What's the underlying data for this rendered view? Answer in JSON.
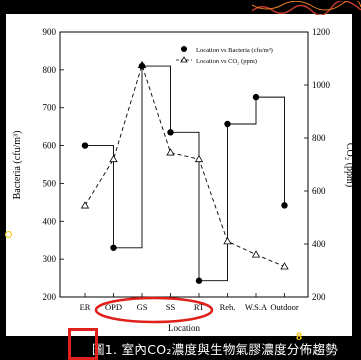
{
  "chart_data": {
    "type": "line",
    "categories": [
      "ER",
      "OPD",
      "GS",
      "SS",
      "RT",
      "Reh.",
      "W.S.A",
      "Outdoor"
    ],
    "xlabel": "Location",
    "ylabel_left": "Bacteria (cfu/m³)",
    "ylabel_right": "CO₂ (ppm)",
    "ylim_left": [
      200,
      900
    ],
    "ylim_right": [
      200,
      1200
    ],
    "yticks_left": [
      200,
      300,
      400,
      500,
      600,
      700,
      800,
      900
    ],
    "yticks_right": [
      200,
      400,
      600,
      800,
      1000,
      1200
    ],
    "series": [
      {
        "name": "Location vs Bacteria (cfu/m³)",
        "axis": "left",
        "style": "step-line-filled-circle",
        "color": "#000000",
        "values": [
          600,
          330,
          810,
          635,
          243,
          657,
          728,
          442
        ]
      },
      {
        "name": "Location vs CO₂ (ppm)",
        "axis": "right",
        "style": "dashed-open-triangle",
        "color": "#000000",
        "values": [
          545,
          720,
          1075,
          745,
          720,
          410,
          360,
          315
        ]
      }
    ],
    "legend_position": "top-right",
    "highlight_categories": [
      "OPD",
      "GS",
      "SS",
      "RT"
    ],
    "highlight_color": "#e0201a"
  },
  "caption": {
    "text": "圖1. 室內CO₂濃度與生物氣膠濃度分佈趨勢",
    "page_number": "8"
  }
}
